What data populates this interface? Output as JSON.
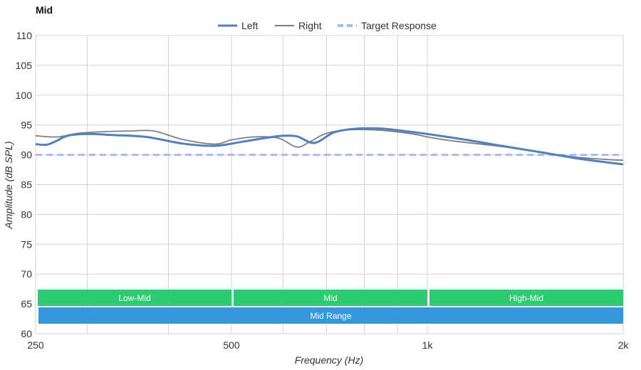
{
  "chart_data": {
    "type": "line",
    "title": "Mid",
    "xlabel": "Frequency (Hz)",
    "ylabel": "Amplitude (dB SPL)",
    "x_scale": "log",
    "xlim": [
      250,
      2000
    ],
    "ylim": [
      60,
      110
    ],
    "x_ticks": [
      {
        "value": 250,
        "label": "250"
      },
      {
        "value": 500,
        "label": "500"
      },
      {
        "value": 1000,
        "label": "1k"
      },
      {
        "value": 2000,
        "label": "2k"
      }
    ],
    "x_gridlines": [
      250,
      300,
      400,
      500,
      600,
      700,
      800,
      900,
      1000,
      2000
    ],
    "y_ticks": [
      60,
      65,
      70,
      75,
      80,
      85,
      90,
      95,
      100,
      105,
      110
    ],
    "grid": true,
    "legend_position": "top-center",
    "series": [
      {
        "name": "Left",
        "color": "#4f81bd",
        "style": "solid-thick",
        "points": [
          [
            250,
            91.8
          ],
          [
            260,
            91.7
          ],
          [
            270,
            92.4
          ],
          [
            280,
            93.2
          ],
          [
            300,
            93.5
          ],
          [
            330,
            93.3
          ],
          [
            370,
            93.0
          ],
          [
            420,
            91.9
          ],
          [
            470,
            91.5
          ],
          [
            520,
            92.2
          ],
          [
            570,
            92.9
          ],
          [
            600,
            93.2
          ],
          [
            630,
            93.1
          ],
          [
            660,
            92.1
          ],
          [
            680,
            92.2
          ],
          [
            720,
            93.8
          ],
          [
            780,
            94.4
          ],
          [
            850,
            94.4
          ],
          [
            920,
            94.0
          ],
          [
            1000,
            93.5
          ],
          [
            1150,
            92.5
          ],
          [
            1300,
            91.5
          ],
          [
            1500,
            90.4
          ],
          [
            1700,
            89.4
          ],
          [
            1900,
            88.7
          ],
          [
            2000,
            88.4
          ]
        ]
      },
      {
        "name": "Right",
        "color": "#7f7f7f",
        "style": "solid-thin",
        "points": [
          [
            250,
            93.2
          ],
          [
            270,
            93.0
          ],
          [
            290,
            93.6
          ],
          [
            320,
            93.9
          ],
          [
            350,
            94.0
          ],
          [
            380,
            94.0
          ],
          [
            420,
            92.6
          ],
          [
            470,
            91.8
          ],
          [
            500,
            92.5
          ],
          [
            540,
            93.0
          ],
          [
            590,
            92.8
          ],
          [
            630,
            91.3
          ],
          [
            660,
            92.2
          ],
          [
            700,
            93.6
          ],
          [
            760,
            94.2
          ],
          [
            850,
            94.1
          ],
          [
            950,
            93.5
          ],
          [
            1000,
            93.0
          ],
          [
            1100,
            92.3
          ],
          [
            1300,
            91.4
          ],
          [
            1500,
            90.4
          ],
          [
            1700,
            89.6
          ],
          [
            1900,
            89.2
          ],
          [
            2000,
            89.1
          ]
        ]
      },
      {
        "name": "Target Response",
        "color": "#a9b9f5",
        "style": "dashed",
        "points": [
          [
            250,
            90
          ],
          [
            2000,
            90
          ]
        ]
      }
    ],
    "bands": [
      {
        "label": "Low-Mid",
        "x0": 250,
        "x1": 500,
        "row": 0,
        "color": "#2ecc71"
      },
      {
        "label": "Mid",
        "x0": 500,
        "x1": 1000,
        "row": 0,
        "color": "#2ecc71"
      },
      {
        "label": "High-Mid",
        "x0": 1000,
        "x1": 2000,
        "row": 0,
        "color": "#2ecc71"
      },
      {
        "label": "Mid Range",
        "x0": 250,
        "x1": 2000,
        "row": 1,
        "color": "#3498db"
      }
    ]
  }
}
